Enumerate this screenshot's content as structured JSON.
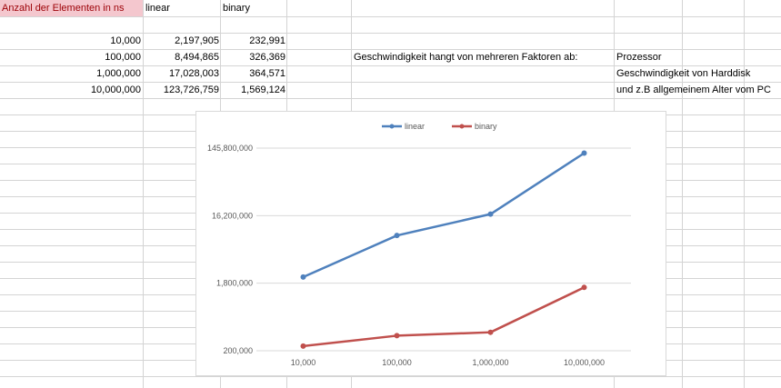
{
  "sheet": {
    "header": {
      "col_a": "Anzahl der Elementen in ns",
      "col_b": "linear",
      "col_c": "binary"
    },
    "rows": [
      {
        "n": "10,000",
        "linear": "2,197,905",
        "binary": "232,991"
      },
      {
        "n": "100,000",
        "linear": "8,494,865",
        "binary": "326,369"
      },
      {
        "n": "1,000,000",
        "linear": "17,028,003",
        "binary": "364,571"
      },
      {
        "n": "10,000,000",
        "linear": "123,726,759",
        "binary": "1,569,124"
      }
    ],
    "note_label": "Geschwindigkeit hangt von mehreren Faktoren ab:",
    "note_items": [
      "Prozessor",
      "Geschwindigkeit von Harddisk",
      "und z.B allgemeinem Alter vom PC"
    ]
  },
  "colors": {
    "linear": "#4f81bd",
    "binary": "#c0504d",
    "header_fill": "#f4c7ce",
    "header_text": "#9c0006",
    "gridline": "#d9d9d9"
  },
  "chart_data": {
    "type": "line",
    "categories": [
      "10,000",
      "100,000",
      "1,000,000",
      "10,000,000"
    ],
    "series": [
      {
        "name": "linear",
        "values": [
          2197905,
          8494865,
          17028003,
          123726759
        ]
      },
      {
        "name": "binary",
        "values": [
          232991,
          326369,
          364571,
          1569124
        ]
      }
    ],
    "yscale": "log",
    "ylim": [
      200000,
      145800000
    ],
    "yticks": [
      200000,
      1800000,
      16200000,
      145800000
    ],
    "ytick_labels": [
      "200,000",
      "1,800,000",
      "16,200,000",
      "145,800,000"
    ],
    "legend": "top",
    "grid": true,
    "title": "",
    "xlabel": "",
    "ylabel": ""
  }
}
